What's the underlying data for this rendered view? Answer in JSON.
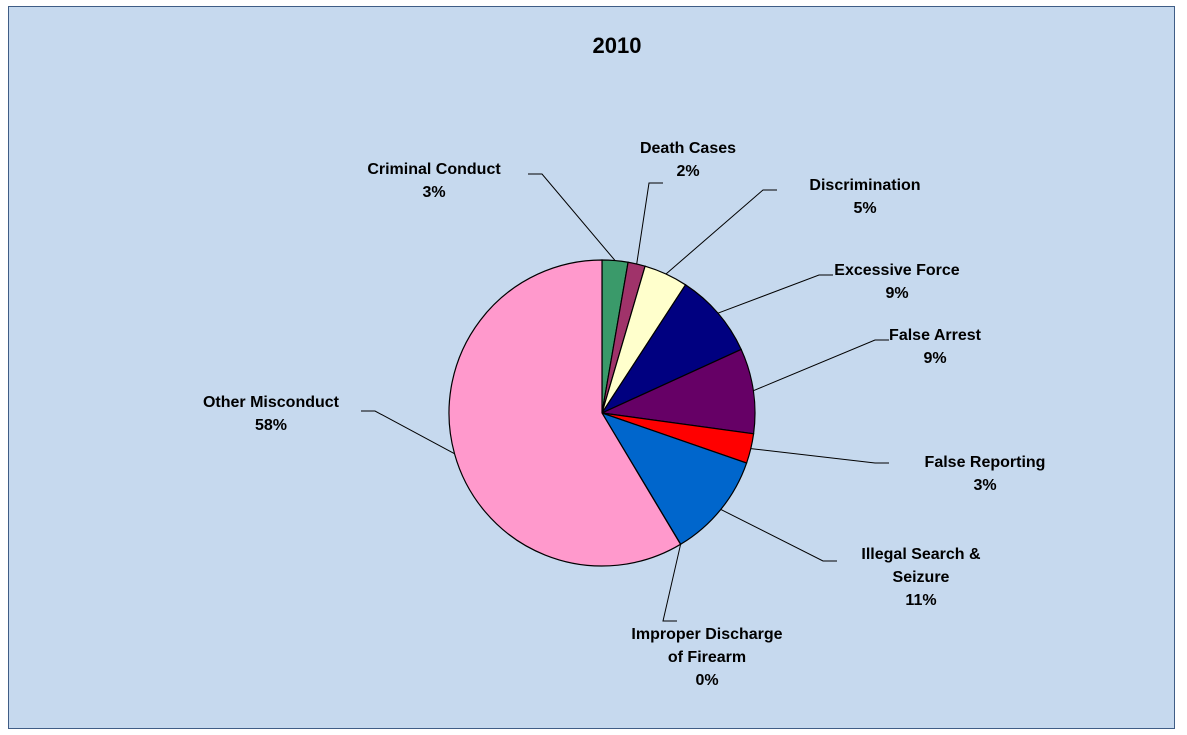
{
  "chart_data": {
    "type": "pie",
    "title": "2010",
    "slices": [
      {
        "label_lines": [
          "Criminal Conduct"
        ],
        "pct_label": "3%",
        "value": 2.7,
        "color": "#3a9a6a"
      },
      {
        "label_lines": [
          "Death Cases"
        ],
        "pct_label": "2%",
        "value": 1.8,
        "color": "#a0336a"
      },
      {
        "label_lines": [
          "Discrimination"
        ],
        "pct_label": "5%",
        "value": 4.6,
        "color": "#ffffcc"
      },
      {
        "label_lines": [
          "Excessive Force"
        ],
        "pct_label": "9%",
        "value": 8.9,
        "color": "#000080"
      },
      {
        "label_lines": [
          "False Arrest"
        ],
        "pct_label": "9%",
        "value": 8.9,
        "color": "#660066"
      },
      {
        "label_lines": [
          "False Reporting"
        ],
        "pct_label": "3%",
        "value": 3.1,
        "color": "#ff0000"
      },
      {
        "label_lines": [
          "Illegal Search &",
          "Seizure"
        ],
        "pct_label": "11%",
        "value": 11.0,
        "color": "#0066cc"
      },
      {
        "label_lines": [
          "Improper Discharge",
          "of Firearm"
        ],
        "pct_label": "0%",
        "value": 0.01,
        "color": "#9999ff"
      },
      {
        "label_lines": [
          "Other Misconduct"
        ],
        "pct_label": "58%",
        "value": 58.0,
        "color": "#ff99cc"
      }
    ]
  }
}
